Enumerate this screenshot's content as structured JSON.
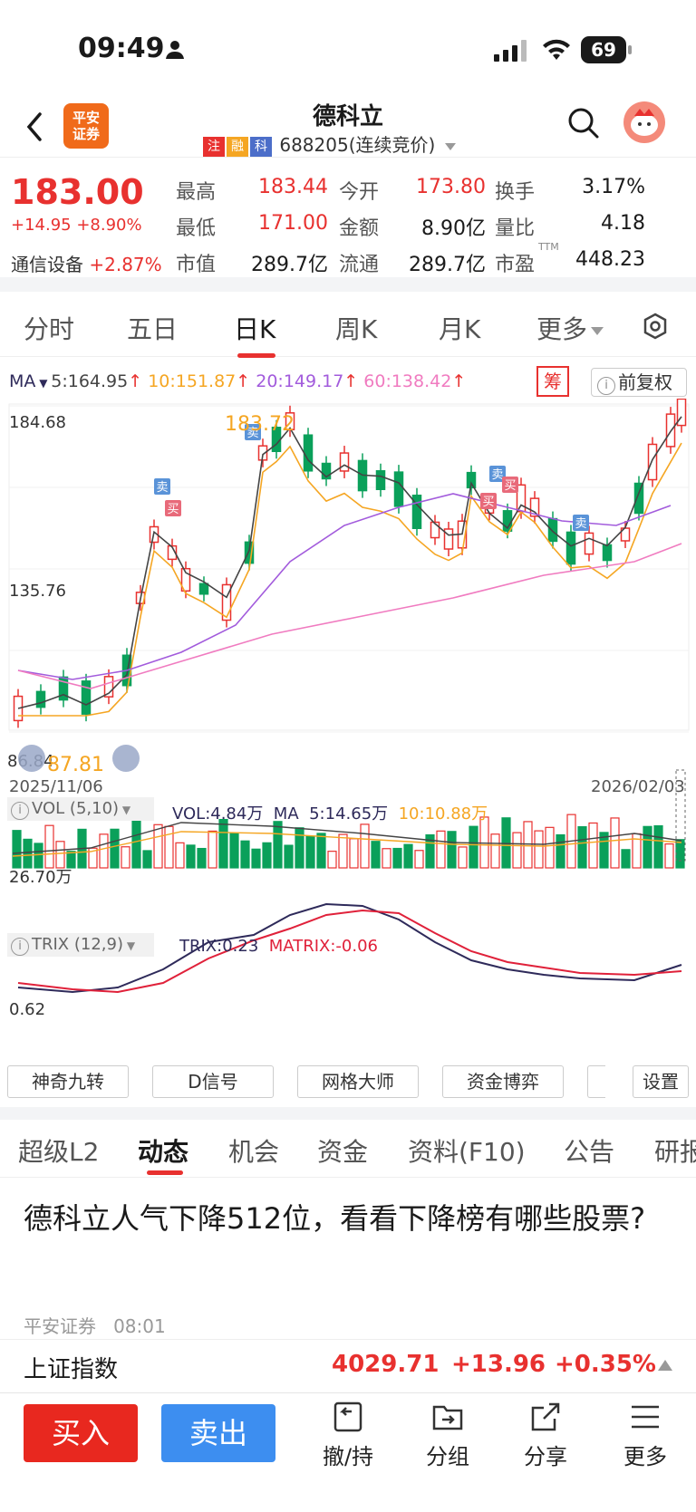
{
  "status": {
    "time": "09:49",
    "battery": "69"
  },
  "header": {
    "logo_text": "平安证券",
    "stock_name": "德科立",
    "tags": [
      "注",
      "融",
      "科"
    ],
    "code_line": "688205(连续竞价)"
  },
  "quote": {
    "price": "183.00",
    "change": "+14.95 +8.90%",
    "sector_name": "通信设备",
    "sector_change": "+2.87%",
    "cells": [
      {
        "label": "最高",
        "value": "183.44",
        "color": "red"
      },
      {
        "label": "今开",
        "value": "173.80",
        "color": "red"
      },
      {
        "label": "换手",
        "value": "3.17%",
        "color": "black"
      },
      {
        "label": "最低",
        "value": "171.00",
        "color": "red"
      },
      {
        "label": "金额",
        "value": "8.90亿",
        "color": "black"
      },
      {
        "label": "量比",
        "value": "4.18",
        "color": "black"
      },
      {
        "label": "市值",
        "value": "289.7亿",
        "color": "black"
      },
      {
        "label": "流通",
        "value": "289.7亿",
        "color": "black"
      },
      {
        "label": "市盈",
        "value": "448.23",
        "color": "black",
        "sup": "TTM"
      }
    ]
  },
  "tabs": [
    "分时",
    "五日",
    "日K",
    "周K",
    "月K",
    "更多"
  ],
  "active_tab": "日K",
  "ma": {
    "label": "MA",
    "ma5": "5:164.95",
    "ma10": "10:151.87",
    "ma20": "20:149.17",
    "ma60": "60:138.42",
    "chou": "筹",
    "fuquan": "前复权"
  },
  "colors": {
    "up": "#e8312f",
    "down": "#0aa05a",
    "ma5": "#444444",
    "ma10": "#f5a623",
    "ma20": "#a25bdc",
    "ma60": "#f07bc0",
    "trix": "#2e2a5a",
    "matrix": "#e0213a"
  },
  "kline": {
    "y_top_label": "184.68",
    "y_mid_label": "135.76",
    "y_bottom_label": "86.84",
    "high_label": "183.72",
    "low_label": "87.81",
    "start_date": "2025/11/06",
    "end_date": "2026/02/03",
    "signals": {
      "sell": "卖",
      "buy": "买"
    }
  },
  "vol": {
    "header": "VOL (5,10)",
    "vol": "VOL:4.84万",
    "ma_label": "MA",
    "ma5": "5:14.65万",
    "ma10": "10:10.88万",
    "y_label": "26.70万"
  },
  "trix": {
    "header": "TRIX (12,9)",
    "trix": "TRIX:0.23",
    "matrix": "MATRIX:-0.06",
    "y_label": "0.62"
  },
  "tools": [
    "神奇九转",
    "D信号",
    "网格大师",
    "资金博弈",
    "设置"
  ],
  "news_tabs": [
    "超级L2",
    "动态",
    "机会",
    "资金",
    "资料(F10)",
    "公告",
    "研报"
  ],
  "active_news_tab": "动态",
  "news": {
    "title": "德科立人气下降512位，看看下降榜有哪些股票?",
    "source": "平安证券",
    "time": "08:01"
  },
  "index_bar": {
    "name": "上证指数",
    "value": "4029.71",
    "change": "+13.96",
    "pct": "+0.35%"
  },
  "bottom": {
    "buy": "买入",
    "sell": "卖出",
    "items": [
      "撤/持",
      "分组",
      "分享",
      "更多"
    ]
  }
}
